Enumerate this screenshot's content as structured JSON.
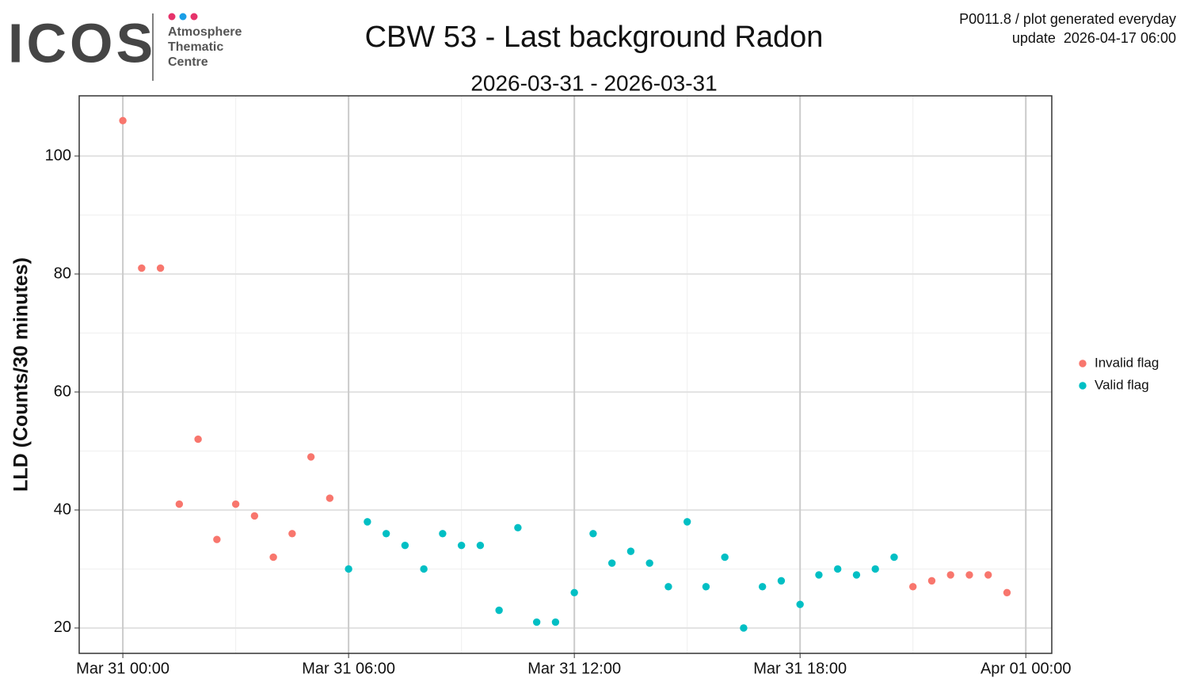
{
  "logo": {
    "name": "ICOS",
    "lines": [
      "Atmosphere",
      "Thematic",
      "Centre"
    ]
  },
  "header_note": [
    "P0011.8 / plot generated everyday",
    "update  2026-04-17 06:00"
  ],
  "chart_data": {
    "type": "scatter",
    "title": "CBW 53 - Last background Radon",
    "subtitle": "2026-03-31 - 2026-03-31",
    "y_label": "LLD (Counts/30 minutes)",
    "series": [
      {
        "name": "Invalid flag",
        "color": "#F8766D",
        "x": [
          0,
          0.5,
          1,
          1.5,
          2,
          2.5,
          3,
          3.5,
          4,
          4.5,
          5,
          5.5,
          21,
          21.5,
          22,
          22.5,
          23,
          23.5
        ],
        "values": [
          106,
          81,
          81,
          41,
          52,
          35,
          41,
          39,
          32,
          36,
          49,
          42,
          27,
          28,
          29,
          29,
          29,
          26
        ]
      },
      {
        "name": "Valid flag",
        "color": "#00BFC4",
        "x": [
          6,
          6.5,
          7,
          7.5,
          8,
          8.5,
          9,
          9.5,
          10,
          10.5,
          11,
          11.5,
          12,
          12.5,
          13,
          13.5,
          14,
          14.5,
          15,
          15.5,
          16,
          16.5,
          17,
          17.5,
          18,
          18.5,
          19,
          19.5,
          20,
          20.5
        ],
        "values": [
          30,
          38,
          36,
          34,
          30,
          36,
          34,
          34,
          23,
          37,
          21,
          21,
          26,
          36,
          31,
          33,
          31,
          27,
          38,
          27,
          32,
          20,
          27,
          28,
          24,
          29,
          30,
          29,
          30,
          32
        ]
      }
    ],
    "xlim": [
      -1.16,
      24.69
    ],
    "xticks": [
      {
        "value": 0,
        "label": "Mar 31 00:00"
      },
      {
        "value": 6,
        "label": "Mar 31 06:00"
      },
      {
        "value": 12,
        "label": "Mar 31 12:00"
      },
      {
        "value": 18,
        "label": "Mar 31 18:00"
      },
      {
        "value": 24,
        "label": "Apr 01 00:00"
      }
    ],
    "xminor": [
      3,
      9,
      15,
      21
    ],
    "ylim": [
      15.7,
      110.2
    ],
    "yticks": [
      20,
      40,
      60,
      80,
      100
    ],
    "yminor": [
      30,
      50,
      70,
      90
    ],
    "grid": true,
    "legend": "right"
  }
}
